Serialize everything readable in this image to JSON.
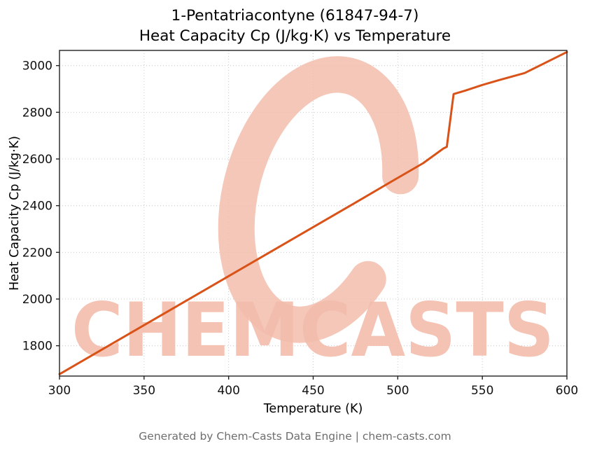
{
  "title_lines": [
    "1-Pentatriacontyne (61847-94-7)",
    "Heat Capacity Cp (J/kg·K) vs Temperature"
  ],
  "footer": {
    "text": "Generated by Chem-Casts Data Engine | chem-casts.com"
  },
  "watermark": {
    "text": "CHEMCASTS",
    "color": "#f3bdac"
  },
  "chart_data": {
    "type": "line",
    "title": "1-Pentatriacontyne (61847-94-7) Heat Capacity Cp (J/kg·K) vs Temperature",
    "xlabel": "Temperature (K)",
    "ylabel": "Heat Capacity Cp (J/kg·K)",
    "xlim": [
      300,
      600
    ],
    "ylim": [
      1670,
      3065
    ],
    "xticks": [
      300,
      350,
      400,
      450,
      500,
      550,
      600
    ],
    "yticks": [
      1800,
      2000,
      2200,
      2400,
      2600,
      2800,
      3000
    ],
    "grid": true,
    "legend": "none",
    "line_color": "#d95319",
    "grid_color": "#c9c9c9",
    "spine_color": "#222222",
    "series": [
      {
        "name": "Heat Capacity Cp",
        "x": [
          300,
          325,
          350,
          375,
          400,
          425,
          450,
          475,
          500,
          515,
          527,
          529,
          533,
          540,
          550,
          560,
          575,
          600
        ],
        "y": [
          1678,
          1783,
          1888,
          1993,
          2098,
          2203,
          2308,
          2413,
          2519,
          2582,
          2645,
          2652,
          2878,
          2893,
          2917,
          2938,
          2968,
          3058
        ]
      }
    ]
  }
}
